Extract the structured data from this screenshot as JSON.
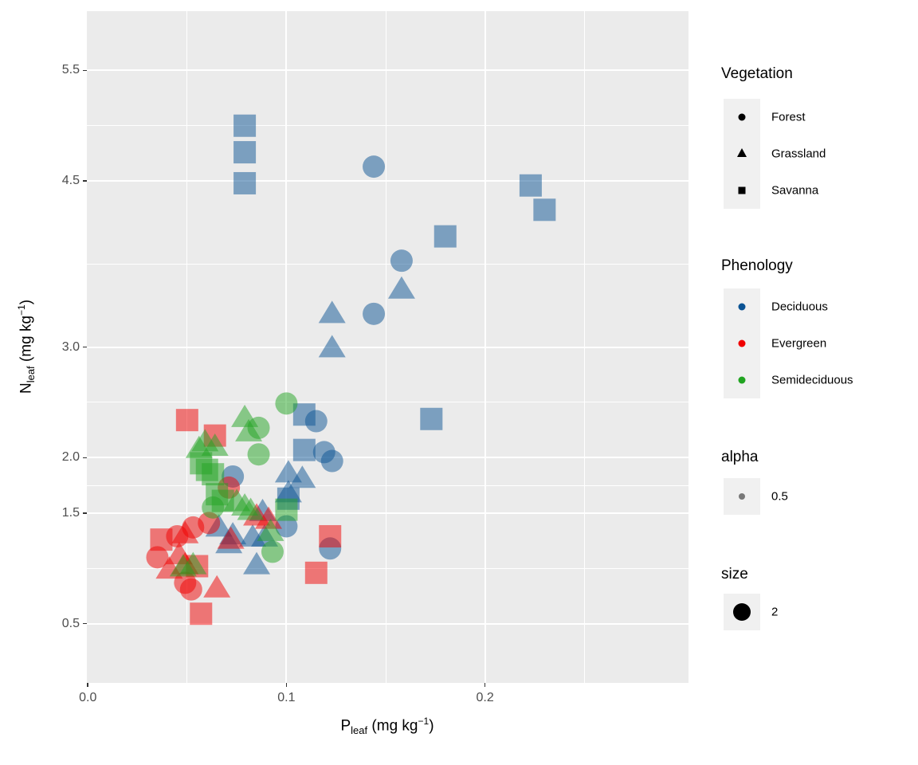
{
  "figure": {
    "panel_bg": "#EBEBEB",
    "grid_color": "#FFFFFF",
    "tick_label_color": "#4D4D4D",
    "legend_key_bg": "#F0F0F0"
  },
  "axis": {
    "x": {
      "base": "P",
      "sub": "leaf",
      "mid": " (mg kg",
      "sup": "−1",
      "end": ")"
    },
    "y": {
      "base": "N",
      "sub": "leaf",
      "mid": " (mg kg",
      "sup": "−1",
      "end": ")"
    },
    "x_tick_labels": [
      "0.0",
      "0.1",
      "0.2"
    ],
    "y_tick_labels": [
      "0.5",
      "1.5",
      "2.0",
      "3.0",
      "4.5",
      "5.5"
    ]
  },
  "chart_data": {
    "type": "scatter",
    "title": "",
    "xlabel": "P_leaf (mg kg^-1)",
    "ylabel": "N_leaf (mg kg^-1)",
    "xlim": [
      0,
      0.3
    ],
    "ylim": [
      0,
      6
    ],
    "x_ticks": [
      0.0,
      0.1,
      0.2
    ],
    "y_ticks": [
      0.5,
      1.5,
      2.0,
      3.0,
      4.5,
      5.5
    ],
    "x_minor": [
      0.05,
      0.15,
      0.25
    ],
    "y_minor": [
      1.0,
      1.75,
      2.5,
      3.75,
      5.0
    ],
    "grid": true,
    "legend_position": "right",
    "point_alpha": 0.5,
    "point_size": 2,
    "shape_by": "Vegetation",
    "color_by": "Phenology",
    "shape_map": {
      "Forest": "circle",
      "Grassland": "triangle",
      "Savanna": "square"
    },
    "color_map": {
      "Deciduous": "#0B5394",
      "Evergreen": "#F00000",
      "Semideciduous": "#21A421"
    },
    "points_format": [
      "x",
      "y",
      "vegetation",
      "phenology"
    ],
    "points": [
      [
        0.079,
        5.0,
        "Savanna",
        "Deciduous"
      ],
      [
        0.079,
        4.76,
        "Savanna",
        "Deciduous"
      ],
      [
        0.079,
        4.48,
        "Savanna",
        "Deciduous"
      ],
      [
        0.223,
        4.46,
        "Savanna",
        "Deciduous"
      ],
      [
        0.23,
        4.24,
        "Savanna",
        "Deciduous"
      ],
      [
        0.18,
        4.0,
        "Savanna",
        "Deciduous"
      ],
      [
        0.173,
        2.35,
        "Savanna",
        "Deciduous"
      ],
      [
        0.109,
        2.39,
        "Savanna",
        "Deciduous"
      ],
      [
        0.109,
        2.07,
        "Savanna",
        "Deciduous"
      ],
      [
        0.101,
        1.63,
        "Savanna",
        "Deciduous"
      ],
      [
        0.144,
        4.63,
        "Forest",
        "Deciduous"
      ],
      [
        0.158,
        3.78,
        "Forest",
        "Deciduous"
      ],
      [
        0.144,
        3.3,
        "Forest",
        "Deciduous"
      ],
      [
        0.115,
        2.33,
        "Forest",
        "Deciduous"
      ],
      [
        0.119,
        2.05,
        "Forest",
        "Deciduous"
      ],
      [
        0.123,
        1.97,
        "Forest",
        "Deciduous"
      ],
      [
        0.073,
        1.83,
        "Forest",
        "Deciduous"
      ],
      [
        0.1,
        1.38,
        "Forest",
        "Deciduous"
      ],
      [
        0.122,
        1.18,
        "Forest",
        "Deciduous"
      ],
      [
        0.158,
        3.52,
        "Grassland",
        "Deciduous"
      ],
      [
        0.123,
        3.3,
        "Grassland",
        "Deciduous"
      ],
      [
        0.123,
        2.99,
        "Grassland",
        "Deciduous"
      ],
      [
        0.101,
        1.86,
        "Grassland",
        "Deciduous"
      ],
      [
        0.108,
        1.81,
        "Grassland",
        "Deciduous"
      ],
      [
        0.101,
        1.68,
        "Grassland",
        "Deciduous"
      ],
      [
        0.088,
        1.51,
        "Grassland",
        "Deciduous"
      ],
      [
        0.066,
        1.37,
        "Grassland",
        "Deciduous"
      ],
      [
        0.073,
        1.3,
        "Grassland",
        "Deciduous"
      ],
      [
        0.083,
        1.28,
        "Grassland",
        "Deciduous"
      ],
      [
        0.089,
        1.28,
        "Grassland",
        "Deciduous"
      ],
      [
        0.071,
        1.22,
        "Grassland",
        "Deciduous"
      ],
      [
        0.085,
        1.03,
        "Grassland",
        "Deciduous"
      ],
      [
        0.05,
        2.34,
        "Savanna",
        "Evergreen"
      ],
      [
        0.064,
        2.2,
        "Savanna",
        "Evergreen"
      ],
      [
        0.037,
        1.26,
        "Savanna",
        "Evergreen"
      ],
      [
        0.122,
        1.29,
        "Savanna",
        "Evergreen"
      ],
      [
        0.115,
        0.96,
        "Savanna",
        "Evergreen"
      ],
      [
        0.055,
        1.02,
        "Savanna",
        "Evergreen"
      ],
      [
        0.057,
        0.59,
        "Savanna",
        "Evergreen"
      ],
      [
        0.035,
        1.1,
        "Forest",
        "Evergreen"
      ],
      [
        0.045,
        1.29,
        "Forest",
        "Evergreen"
      ],
      [
        0.049,
        0.87,
        "Forest",
        "Evergreen"
      ],
      [
        0.052,
        0.81,
        "Forest",
        "Evergreen"
      ],
      [
        0.071,
        1.73,
        "Forest",
        "Evergreen"
      ],
      [
        0.053,
        1.37,
        "Forest",
        "Evergreen"
      ],
      [
        0.061,
        1.41,
        "Forest",
        "Evergreen"
      ],
      [
        0.049,
        1.31,
        "Grassland",
        "Evergreen"
      ],
      [
        0.046,
        1.12,
        "Grassland",
        "Evergreen"
      ],
      [
        0.049,
        1.03,
        "Grassland",
        "Evergreen"
      ],
      [
        0.041,
        0.99,
        "Grassland",
        "Evergreen"
      ],
      [
        0.065,
        0.82,
        "Grassland",
        "Evergreen"
      ],
      [
        0.085,
        1.47,
        "Grassland",
        "Evergreen"
      ],
      [
        0.091,
        1.44,
        "Grassland",
        "Evergreen"
      ],
      [
        0.072,
        1.26,
        "Grassland",
        "Evergreen"
      ],
      [
        0.057,
        1.95,
        "Savanna",
        "Semideciduous"
      ],
      [
        0.06,
        1.89,
        "Savanna",
        "Semideciduous"
      ],
      [
        0.063,
        1.85,
        "Savanna",
        "Semideciduous"
      ],
      [
        0.068,
        1.61,
        "Savanna",
        "Semideciduous"
      ],
      [
        0.065,
        1.67,
        "Savanna",
        "Semideciduous"
      ],
      [
        0.1,
        1.53,
        "Savanna",
        "Semideciduous"
      ],
      [
        0.1,
        2.49,
        "Forest",
        "Semideciduous"
      ],
      [
        0.086,
        2.27,
        "Forest",
        "Semideciduous"
      ],
      [
        0.086,
        2.03,
        "Forest",
        "Semideciduous"
      ],
      [
        0.063,
        1.55,
        "Forest",
        "Semideciduous"
      ],
      [
        0.093,
        1.15,
        "Forest",
        "Semideciduous"
      ],
      [
        0.079,
        2.36,
        "Grassland",
        "Semideciduous"
      ],
      [
        0.081,
        2.23,
        "Grassland",
        "Semideciduous"
      ],
      [
        0.064,
        2.1,
        "Grassland",
        "Semideciduous"
      ],
      [
        0.056,
        2.08,
        "Grassland",
        "Semideciduous"
      ],
      [
        0.059,
        2.14,
        "Grassland",
        "Semideciduous"
      ],
      [
        0.079,
        1.56,
        "Grassland",
        "Semideciduous"
      ],
      [
        0.075,
        1.6,
        "Grassland",
        "Semideciduous"
      ],
      [
        0.082,
        1.52,
        "Grassland",
        "Semideciduous"
      ],
      [
        0.092,
        1.33,
        "Grassland",
        "Semideciduous"
      ],
      [
        0.048,
        1.01,
        "Grassland",
        "Semideciduous"
      ],
      [
        0.053,
        1.03,
        "Grassland",
        "Semideciduous"
      ]
    ]
  },
  "legend": {
    "groups": [
      {
        "id": "vegetation",
        "title": "Vegetation",
        "items": [
          {
            "label": "Forest",
            "symbol": {
              "shape": "circle",
              "color": "#000000",
              "size": 9,
              "opacity": 1
            }
          },
          {
            "label": "Grassland",
            "symbol": {
              "shape": "triangle",
              "color": "#000000",
              "size": 12,
              "opacity": 1
            }
          },
          {
            "label": "Savanna",
            "symbol": {
              "shape": "square",
              "color": "#000000",
              "size": 9,
              "opacity": 1
            }
          }
        ]
      },
      {
        "id": "phenology",
        "title": "Phenology",
        "items": [
          {
            "label": "Deciduous",
            "symbol": {
              "shape": "circle",
              "color": "#0B5394",
              "size": 9,
              "opacity": 1
            }
          },
          {
            "label": "Evergreen",
            "symbol": {
              "shape": "circle",
              "color": "#F00000",
              "size": 9,
              "opacity": 1
            }
          },
          {
            "label": "Semideciduous",
            "symbol": {
              "shape": "circle",
              "color": "#21A421",
              "size": 9,
              "opacity": 1
            }
          }
        ]
      },
      {
        "id": "alpha",
        "title": "alpha",
        "items": [
          {
            "label": "0.5",
            "symbol": {
              "shape": "circle",
              "color": "#000000",
              "size": 8,
              "opacity": 0.5
            }
          }
        ]
      },
      {
        "id": "size",
        "title": "size",
        "items": [
          {
            "label": "2",
            "symbol": {
              "shape": "circle",
              "color": "#000000",
              "size": 22,
              "opacity": 1
            }
          }
        ]
      }
    ]
  }
}
